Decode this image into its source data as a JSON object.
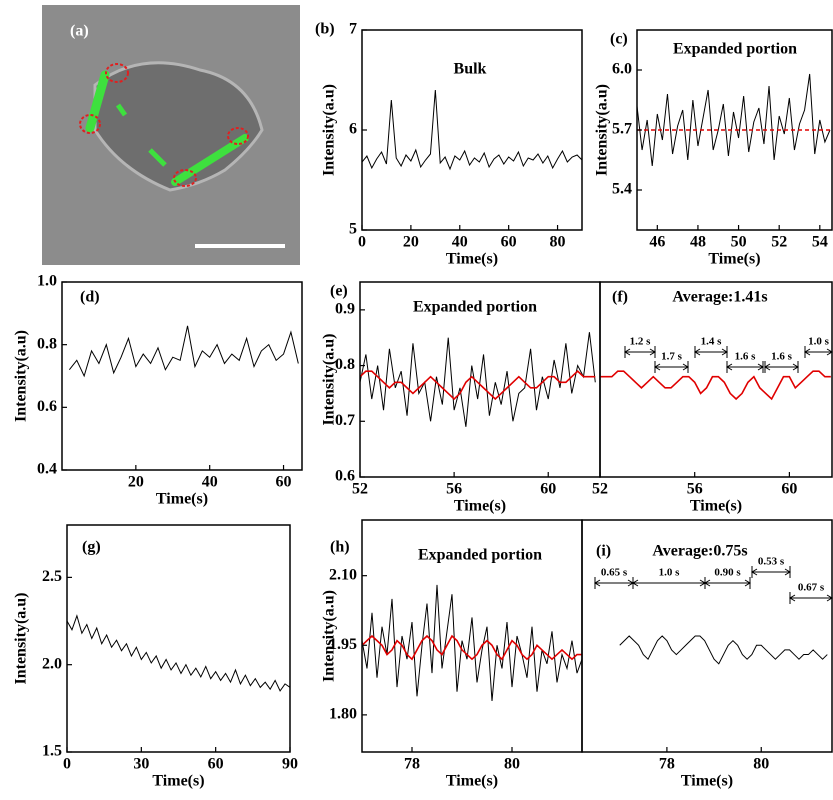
{
  "image_panel": {
    "label": "(a)"
  },
  "chart_data": [
    {
      "type": "line",
      "label": "(b)",
      "title": "Bulk",
      "xlabel": "Time(s)",
      "ylabel": "Intensity(a.u)",
      "xlim": [
        0,
        90
      ],
      "ylim": [
        5,
        7
      ],
      "xticks": [
        0,
        20,
        40,
        60,
        80
      ],
      "yticks": [
        5,
        6,
        7
      ],
      "x": [
        0,
        2,
        4,
        6,
        8,
        10,
        12,
        14,
        16,
        18,
        20,
        22,
        24,
        26,
        28,
        30,
        32,
        34,
        36,
        38,
        40,
        42,
        44,
        46,
        48,
        50,
        52,
        54,
        56,
        58,
        60,
        62,
        64,
        66,
        68,
        70,
        72,
        74,
        76,
        78,
        80,
        82,
        84,
        86,
        88,
        90
      ],
      "series": [
        {
          "color": "#000000",
          "values": [
            5.68,
            5.74,
            5.62,
            5.71,
            5.78,
            5.66,
            6.3,
            5.72,
            5.64,
            5.75,
            5.69,
            5.8,
            5.63,
            5.7,
            5.76,
            6.4,
            5.67,
            5.73,
            5.61,
            5.74,
            5.7,
            5.79,
            5.65,
            5.72,
            5.68,
            5.77,
            5.63,
            5.71,
            5.75,
            5.66,
            5.73,
            5.69,
            5.78,
            5.64,
            5.72,
            5.7,
            5.76,
            5.67,
            5.74,
            5.62,
            5.71,
            5.79,
            5.68,
            5.73,
            5.75,
            5.7
          ]
        }
      ]
    },
    {
      "type": "line",
      "label": "(c)",
      "title": "Expanded portion",
      "xlabel": "Time(s)",
      "ylabel": "Intensity(a.u)",
      "xlim": [
        45,
        54.6
      ],
      "ylim": [
        5.2,
        6.2
      ],
      "xticks": [
        46,
        48,
        50,
        52,
        54
      ],
      "yticks": [
        5.4,
        5.7,
        {
          "value": 6,
          "label": "6.0"
        }
      ],
      "x": [
        45,
        45.25,
        45.5,
        45.75,
        46,
        46.25,
        46.5,
        46.75,
        47,
        47.25,
        47.5,
        47.75,
        48,
        48.25,
        48.5,
        48.75,
        49,
        49.25,
        49.5,
        49.75,
        50,
        50.25,
        50.5,
        50.75,
        51,
        51.25,
        51.5,
        51.75,
        52,
        52.25,
        52.5,
        52.75,
        53,
        53.25,
        53.5,
        53.75,
        54,
        54.25,
        54.5
      ],
      "series": [
        {
          "color": "#000000",
          "values": [
            5.82,
            5.6,
            5.75,
            5.52,
            5.78,
            5.65,
            5.88,
            5.58,
            5.72,
            5.8,
            5.55,
            5.85,
            5.62,
            5.76,
            5.9,
            5.6,
            5.7,
            5.83,
            5.57,
            5.79,
            5.66,
            5.87,
            5.59,
            5.74,
            5.81,
            5.63,
            5.92,
            5.55,
            5.77,
            5.68,
            5.86,
            5.6,
            5.73,
            5.8,
            5.98,
            5.58,
            5.75,
            5.64,
            5.7
          ]
        },
        {
          "color": "#e00000",
          "dashed": true,
          "values": [
            5.7,
            5.7,
            5.7,
            5.7,
            5.7,
            5.7,
            5.7,
            5.7,
            5.7,
            5.7,
            5.7,
            5.7,
            5.7,
            5.7,
            5.7,
            5.7,
            5.7,
            5.7,
            5.7,
            5.7,
            5.7,
            5.7,
            5.7,
            5.7,
            5.7,
            5.7,
            5.7,
            5.7,
            5.7,
            5.7,
            5.7,
            5.7,
            5.7,
            5.7,
            5.7,
            5.7,
            5.7,
            5.7,
            5.7
          ]
        }
      ]
    },
    {
      "type": "line",
      "label": "(d)",
      "xlabel": "Time(s)",
      "ylabel": "Intensity(a.u)",
      "xlim": [
        0,
        65
      ],
      "ylim": [
        0.4,
        1.0
      ],
      "xticks": [
        20,
        40,
        60
      ],
      "yticks": [
        0.4,
        0.6,
        0.8,
        {
          "value": 1.0,
          "label": "1.0"
        }
      ],
      "x": [
        2,
        4,
        6,
        8,
        10,
        12,
        14,
        16,
        18,
        20,
        22,
        24,
        26,
        28,
        30,
        32,
        34,
        36,
        38,
        40,
        42,
        44,
        46,
        48,
        50,
        52,
        54,
        56,
        58,
        60,
        62,
        64
      ],
      "series": [
        {
          "color": "#000000",
          "values": [
            0.72,
            0.75,
            0.7,
            0.78,
            0.74,
            0.8,
            0.71,
            0.76,
            0.82,
            0.73,
            0.77,
            0.74,
            0.79,
            0.72,
            0.76,
            0.75,
            0.86,
            0.73,
            0.78,
            0.76,
            0.8,
            0.74,
            0.77,
            0.75,
            0.82,
            0.73,
            0.78,
            0.8,
            0.75,
            0.77,
            0.84,
            0.74
          ]
        }
      ]
    },
    {
      "type": "line",
      "label": "(e)",
      "title": "Expanded portion",
      "xlabel": "Time(s)",
      "ylabel": "Intensity(a.u)",
      "xlim": [
        52,
        62.2
      ],
      "ylim": [
        0.6,
        0.95
      ],
      "xticks": [
        52,
        56,
        60
      ],
      "yticks": [
        0.6,
        0.7,
        0.8,
        0.9
      ],
      "x": [
        52,
        52.25,
        52.5,
        52.75,
        53,
        53.25,
        53.5,
        53.75,
        54,
        54.25,
        54.5,
        54.75,
        55,
        55.25,
        55.5,
        55.75,
        56,
        56.25,
        56.5,
        56.75,
        57,
        57.25,
        57.5,
        57.75,
        58,
        58.25,
        58.5,
        58.75,
        59,
        59.25,
        59.5,
        59.75,
        60,
        60.25,
        60.5,
        60.75,
        61,
        61.25,
        61.5,
        61.75,
        62
      ],
      "series": [
        {
          "color": "#000000",
          "values": [
            0.77,
            0.82,
            0.74,
            0.8,
            0.72,
            0.83,
            0.76,
            0.79,
            0.71,
            0.84,
            0.75,
            0.77,
            0.7,
            0.78,
            0.73,
            0.85,
            0.72,
            0.76,
            0.69,
            0.8,
            0.74,
            0.82,
            0.71,
            0.77,
            0.73,
            0.79,
            0.7,
            0.75,
            0.76,
            0.83,
            0.72,
            0.78,
            0.74,
            0.81,
            0.76,
            0.84,
            0.75,
            0.8,
            0.78,
            0.86,
            0.77
          ]
        },
        {
          "color": "#e00000",
          "values": [
            0.78,
            0.79,
            0.79,
            0.78,
            0.77,
            0.76,
            0.77,
            0.77,
            0.76,
            0.75,
            0.76,
            0.77,
            0.78,
            0.77,
            0.76,
            0.75,
            0.74,
            0.75,
            0.77,
            0.78,
            0.77,
            0.76,
            0.75,
            0.74,
            0.75,
            0.76,
            0.77,
            0.78,
            0.77,
            0.76,
            0.76,
            0.77,
            0.78,
            0.78,
            0.77,
            0.77,
            0.78,
            0.79,
            0.78,
            0.78,
            0.78
          ]
        }
      ]
    },
    {
      "type": "line",
      "label": "(f)",
      "title": "Average:1.41s",
      "xlabel": "Time(s)",
      "annotations": [
        "1.2 s",
        "1.7 s",
        "1.4 s",
        "1.6 s",
        "1.6 s",
        "1.0 s"
      ],
      "xlim": [
        52,
        61.8
      ],
      "ylim": [
        0.6,
        0.95
      ],
      "xticks": [
        52,
        56,
        60
      ],
      "x": [
        52,
        52.25,
        52.5,
        52.75,
        53,
        53.25,
        53.5,
        53.75,
        54,
        54.25,
        54.5,
        54.75,
        55,
        55.25,
        55.5,
        55.75,
        56,
        56.25,
        56.5,
        56.75,
        57,
        57.25,
        57.5,
        57.75,
        58,
        58.25,
        58.5,
        58.75,
        59,
        59.25,
        59.5,
        59.75,
        60,
        60.25,
        60.5,
        60.75,
        61,
        61.25,
        61.5,
        61.75
      ],
      "series": [
        {
          "color": "#e00000",
          "values": [
            0.78,
            0.78,
            0.78,
            0.79,
            0.79,
            0.78,
            0.77,
            0.76,
            0.77,
            0.78,
            0.77,
            0.76,
            0.76,
            0.77,
            0.78,
            0.78,
            0.77,
            0.75,
            0.76,
            0.78,
            0.78,
            0.77,
            0.75,
            0.74,
            0.75,
            0.77,
            0.78,
            0.76,
            0.75,
            0.74,
            0.76,
            0.78,
            0.78,
            0.76,
            0.77,
            0.78,
            0.79,
            0.79,
            0.78,
            0.78
          ]
        }
      ]
    },
    {
      "type": "line",
      "label": "(g)",
      "xlabel": "Time(s)",
      "ylabel": "Intensity(a.u)",
      "xlim": [
        0,
        90
      ],
      "ylim": [
        1.5,
        2.8
      ],
      "xticks": [
        0,
        30,
        60,
        90
      ],
      "yticks": [
        1.5,
        {
          "value": 2.0,
          "label": "2.0"
        },
        2.5
      ],
      "x": [
        0,
        2,
        4,
        6,
        8,
        10,
        12,
        14,
        16,
        18,
        20,
        22,
        24,
        26,
        28,
        30,
        32,
        34,
        36,
        38,
        40,
        42,
        44,
        46,
        48,
        50,
        52,
        54,
        56,
        58,
        60,
        62,
        64,
        66,
        68,
        70,
        72,
        74,
        76,
        78,
        80,
        82,
        84,
        86,
        88,
        90
      ],
      "series": [
        {
          "color": "#000000",
          "values": [
            2.25,
            2.2,
            2.28,
            2.18,
            2.23,
            2.15,
            2.21,
            2.12,
            2.17,
            2.1,
            2.14,
            2.08,
            2.12,
            2.05,
            2.1,
            2.03,
            2.07,
            2.01,
            2.05,
            1.98,
            2.03,
            1.97,
            2.01,
            1.95,
            2.0,
            1.94,
            1.98,
            1.93,
            1.99,
            1.92,
            1.96,
            1.91,
            1.95,
            1.9,
            1.97,
            1.89,
            1.94,
            1.88,
            1.92,
            1.87,
            1.9,
            1.86,
            1.91,
            1.85,
            1.89,
            1.87
          ]
        }
      ]
    },
    {
      "type": "line",
      "label": "(h)",
      "title": "Expanded portion",
      "xlabel": "Time(s)",
      "ylabel": "Intensity(a.u)",
      "xlim": [
        77,
        81.4
      ],
      "ylim": [
        1.72,
        2.22
      ],
      "xticks": [
        78,
        80
      ],
      "yticks": [
        {
          "value": 1.8,
          "label": "1.80"
        },
        1.95,
        {
          "value": 2.1,
          "label": "2.10"
        }
      ],
      "x": [
        77,
        77.1,
        77.2,
        77.3,
        77.4,
        77.5,
        77.6,
        77.7,
        77.8,
        77.9,
        78,
        78.1,
        78.2,
        78.3,
        78.4,
        78.5,
        78.6,
        78.7,
        78.8,
        78.9,
        79,
        79.1,
        79.2,
        79.3,
        79.4,
        79.5,
        79.6,
        79.7,
        79.8,
        79.9,
        80,
        80.1,
        80.2,
        80.3,
        80.4,
        80.5,
        80.6,
        80.7,
        80.8,
        80.9,
        81,
        81.1,
        81.2,
        81.3,
        81.4
      ],
      "series": [
        {
          "color": "#000000",
          "values": [
            1.96,
            1.9,
            2.02,
            1.88,
            1.99,
            1.93,
            2.05,
            1.86,
            1.97,
            1.92,
            2.0,
            1.84,
            1.95,
            2.04,
            1.89,
            2.08,
            1.9,
            1.98,
            2.06,
            1.85,
            1.96,
            1.92,
            2.01,
            1.87,
            1.94,
            1.99,
            1.83,
            1.95,
            1.9,
            2.0,
            1.86,
            1.97,
            1.93,
            1.88,
            1.99,
            1.85,
            1.94,
            1.91,
            1.98,
            1.87,
            1.93,
            1.9,
            1.96,
            1.89,
            1.92
          ]
        },
        {
          "color": "#e00000",
          "values": [
            1.95,
            1.96,
            1.97,
            1.96,
            1.95,
            1.93,
            1.94,
            1.96,
            1.95,
            1.93,
            1.92,
            1.94,
            1.96,
            1.97,
            1.96,
            1.94,
            1.93,
            1.95,
            1.97,
            1.96,
            1.94,
            1.93,
            1.92,
            1.93,
            1.95,
            1.96,
            1.95,
            1.93,
            1.92,
            1.94,
            1.96,
            1.95,
            1.93,
            1.92,
            1.93,
            1.95,
            1.94,
            1.93,
            1.92,
            1.93,
            1.94,
            1.93,
            1.92,
            1.93,
            1.93
          ]
        }
      ]
    },
    {
      "type": "line",
      "label": "(i)",
      "title": "Average:0.75s",
      "xlabel": "Time(s)",
      "annotations": [
        "0.65 s",
        "1.0 s",
        "0.90 s",
        "0.53 s",
        "0.67 s"
      ],
      "xlim": [
        76.2,
        81.5
      ],
      "ylim": [
        1.72,
        2.22
      ],
      "xticks": [
        78,
        80
      ],
      "x": [
        77,
        77.1,
        77.2,
        77.3,
        77.4,
        77.5,
        77.6,
        77.7,
        77.8,
        77.9,
        78,
        78.1,
        78.2,
        78.3,
        78.4,
        78.5,
        78.6,
        78.7,
        78.8,
        78.9,
        79,
        79.1,
        79.2,
        79.3,
        79.4,
        79.5,
        79.6,
        79.7,
        79.8,
        79.9,
        80,
        80.1,
        80.2,
        80.3,
        80.4,
        80.5,
        80.6,
        80.7,
        80.8,
        80.9,
        81,
        81.1,
        81.2,
        81.3,
        81.4
      ],
      "series": [
        {
          "color": "#000000",
          "values": [
            1.95,
            1.96,
            1.97,
            1.96,
            1.95,
            1.93,
            1.92,
            1.94,
            1.96,
            1.97,
            1.96,
            1.94,
            1.93,
            1.94,
            1.95,
            1.96,
            1.97,
            1.97,
            1.96,
            1.94,
            1.92,
            1.91,
            1.93,
            1.95,
            1.96,
            1.95,
            1.93,
            1.92,
            1.93,
            1.95,
            1.95,
            1.94,
            1.93,
            1.92,
            1.93,
            1.94,
            1.94,
            1.93,
            1.92,
            1.93,
            1.93,
            1.94,
            1.93,
            1.92,
            1.93
          ]
        }
      ]
    }
  ]
}
